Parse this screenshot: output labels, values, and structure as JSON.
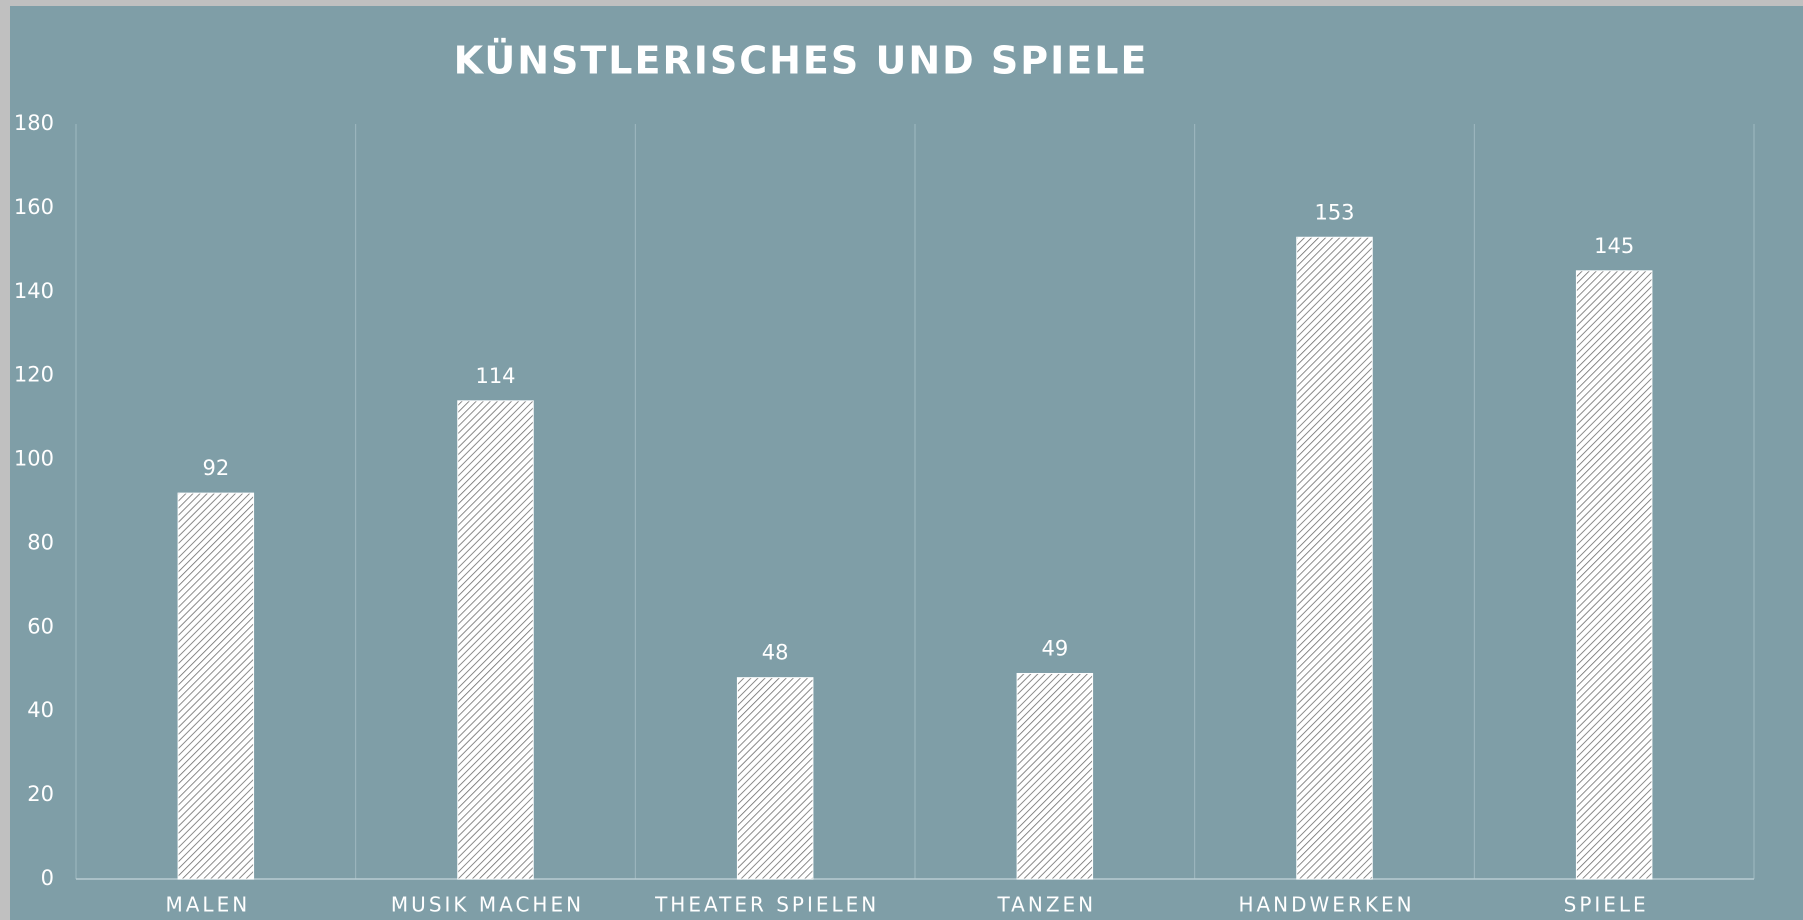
{
  "chart_data": {
    "type": "bar",
    "title": "KÜNSTLERISCHES UND SPIELE",
    "categories": [
      "MALEN",
      "MUSIK MACHEN",
      "THEATER SPIELEN",
      "TANZEN",
      "HANDWERKEN",
      "SPIELE"
    ],
    "values": [
      92,
      114,
      48,
      49,
      153,
      145
    ],
    "color": "#ffffff",
    "ylim": [
      0,
      180
    ],
    "yticks": [
      0,
      20,
      40,
      60,
      80,
      100,
      120,
      140,
      160,
      180
    ],
    "grid": true
  }
}
